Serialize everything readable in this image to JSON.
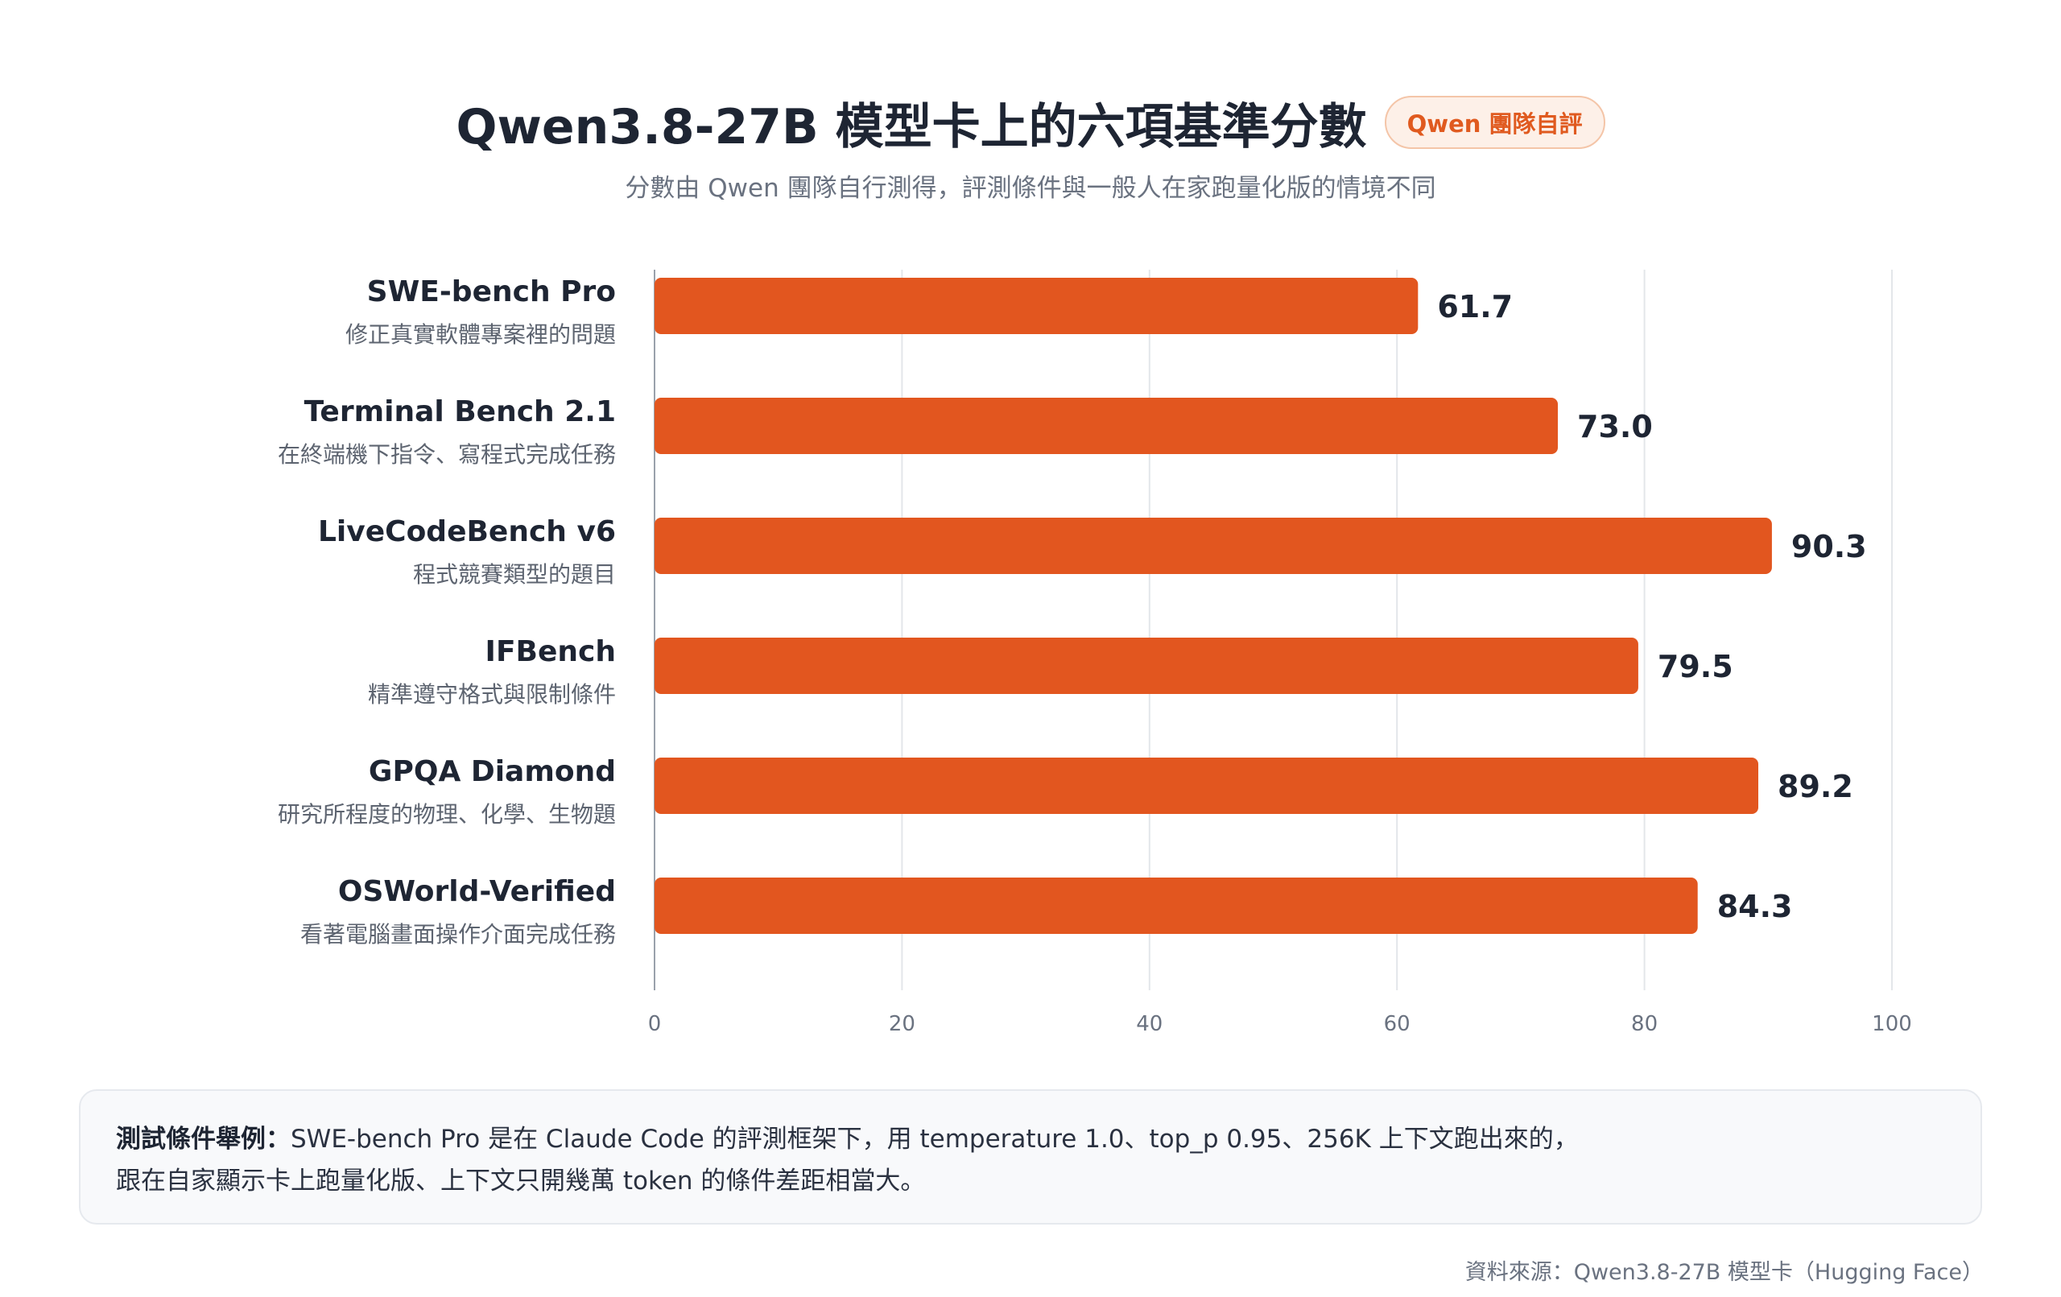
{
  "header": {
    "title": "Qwen3.8-27B 模型卡上的六項基準分數",
    "badge": "Qwen 團隊自評",
    "subtitle": "分數由 Qwen 團隊自行測得，評測條件與一般人在家跑量化版的情境不同"
  },
  "note": {
    "label": "測試條件舉例：",
    "line1": "SWE-bench Pro 是在 Claude Code 的評測框架下，用 temperature 1.0、top_p 0.95、256K 上下文跑出來的，",
    "line2": "跟在自家顯示卡上跑量化版、上下文只開幾萬 token 的條件差距相當大。"
  },
  "source": "資料來源：Qwen3.8-27B 模型卡（Hugging Face）",
  "colors": {
    "bar": "#e2561f",
    "grid": "#e3e6ea",
    "axis": "#9aa1ab",
    "label": "#1e2533",
    "sublabel": "#5d6470",
    "badge_text": "#e05a1f",
    "badge_bg": "#fdf0e8"
  },
  "chart_data": {
    "type": "bar",
    "orientation": "horizontal",
    "categories": [
      "SWE-bench Pro",
      "Terminal Bench 2.1",
      "LiveCodeBench v6",
      "IFBench",
      "GPQA Diamond",
      "OSWorld-Verified"
    ],
    "descriptions": [
      "修正真實軟體專案裡的問題",
      "在終端機下指令、寫程式完成任務",
      "程式競賽類型的題目",
      "精準遵守格式與限制條件",
      "研究所程度的物理、化學、生物題",
      "看著電腦畫面操作介面完成任務"
    ],
    "values": [
      61.7,
      73.0,
      90.3,
      79.5,
      89.2,
      84.3
    ],
    "value_labels": [
      "61.7",
      "73.0",
      "90.3",
      "79.5",
      "89.2",
      "84.3"
    ],
    "xlim": [
      0,
      100
    ],
    "xticks": [
      0,
      20,
      40,
      60,
      80,
      100
    ],
    "grid": true,
    "legend": "none"
  }
}
